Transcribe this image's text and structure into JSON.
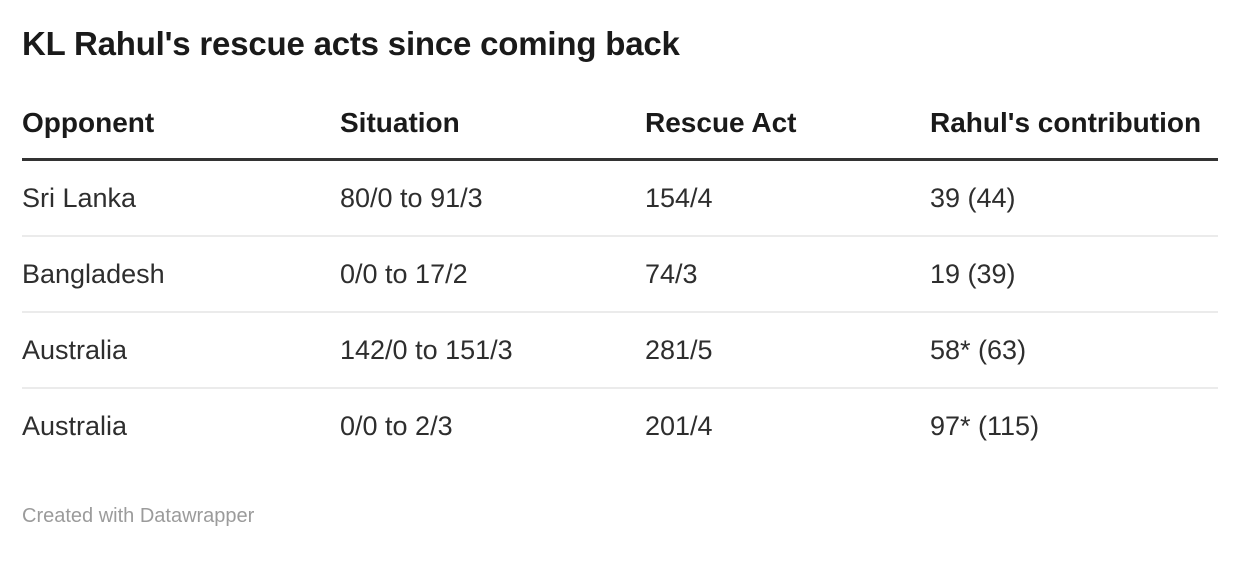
{
  "title": "KL Rahul's rescue acts since coming back",
  "table": {
    "columns": [
      "Opponent",
      "Situation",
      "Rescue Act",
      "Rahul's contribution"
    ],
    "rows": [
      [
        "Sri Lanka",
        "80/0 to 91/3",
        "154/4",
        "39 (44)"
      ],
      [
        "Bangladesh",
        "0/0 to 17/2",
        "74/3",
        "19 (39)"
      ],
      [
        "Australia",
        "142/0 to 151/3",
        "281/5",
        "58* (63)"
      ],
      [
        "Australia",
        "0/0 to 2/3",
        "201/4",
        "97* (115)"
      ]
    ]
  },
  "footer": {
    "credit": "Created with Datawrapper"
  },
  "colors": {
    "title_text": "#1a1a1a",
    "header_rule": "#333333",
    "row_divider": "#ebebeb",
    "body_text": "#2e2e2e",
    "credit_text": "#9b9b9b",
    "background": "#ffffff"
  },
  "chart_data": {
    "type": "table",
    "title": "KL Rahul's rescue acts since coming back",
    "columns": [
      "Opponent",
      "Situation",
      "Rescue Act",
      "Rahul's contribution"
    ],
    "rows": [
      {
        "opponent": "Sri Lanka",
        "situation": "80/0 to 91/3",
        "rescue_act": "154/4",
        "rahuls_contribution": "39 (44)"
      },
      {
        "opponent": "Bangladesh",
        "situation": "0/0 to 17/2",
        "rescue_act": "74/3",
        "rahuls_contribution": "19 (39)"
      },
      {
        "opponent": "Australia",
        "situation": "142/0 to 151/3",
        "rescue_act": "281/5",
        "rahuls_contribution": "58* (63)"
      },
      {
        "opponent": "Australia",
        "situation": "0/0 to 2/3",
        "rescue_act": "201/4",
        "rahuls_contribution": "97* (115)"
      }
    ],
    "layout_hints": {
      "alignment": "left",
      "header_rule": "thick-dark",
      "row_dividers": "light-gray",
      "credit": "Created with Datawrapper"
    }
  }
}
